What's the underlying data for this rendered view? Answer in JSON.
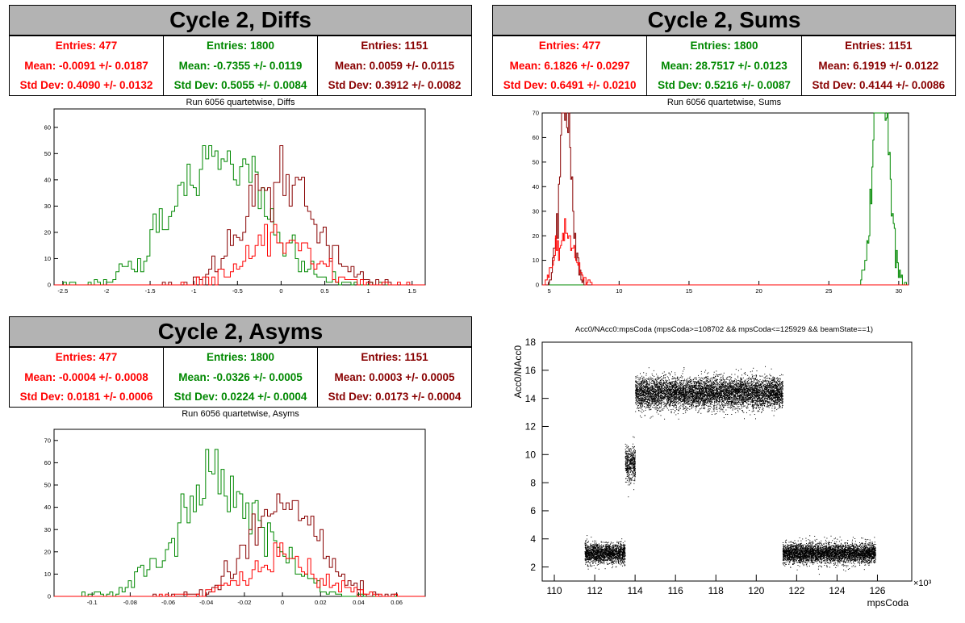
{
  "colors": {
    "s1": "#ff0000",
    "s2": "#008800",
    "s3": "#880000"
  },
  "panels": {
    "diffs": {
      "title": "Cycle 2, Diffs",
      "subtitle": "Run 6056 quartetwise, Diffs",
      "stats": [
        {
          "entries": "Entries: 477",
          "mean": "Mean: -0.0091 +/- 0.0187",
          "std": "Std Dev: 0.4090 +/- 0.0132"
        },
        {
          "entries": "Entries: 1800",
          "mean": "Mean: -0.7355 +/- 0.0119",
          "std": "Std Dev: 0.5055 +/- 0.0084"
        },
        {
          "entries": "Entries: 1151",
          "mean": "Mean: 0.0059 +/- 0.0115",
          "std": "Std Dev: 0.3912 +/- 0.0082"
        }
      ]
    },
    "sums": {
      "title": "Cycle 2, Sums",
      "subtitle": "Run 6056 quartetwise, Sums",
      "stats": [
        {
          "entries": "Entries: 477",
          "mean": "Mean: 6.1826 +/- 0.0297",
          "std": "Std Dev: 0.6491 +/- 0.0210"
        },
        {
          "entries": "Entries: 1800",
          "mean": "Mean: 28.7517 +/- 0.0123",
          "std": "Std Dev: 0.5216 +/- 0.0087"
        },
        {
          "entries": "Entries: 1151",
          "mean": "Mean: 6.1919 +/- 0.0122",
          "std": "Std Dev: 0.4144 +/- 0.0086"
        }
      ]
    },
    "asyms": {
      "title": "Cycle 2, Asyms",
      "subtitle": "Run 6056 quartetwise, Asyms",
      "stats": [
        {
          "entries": "Entries: 477",
          "mean": "Mean: -0.0004 +/- 0.0008",
          "std": "Std Dev: 0.0181 +/- 0.0006"
        },
        {
          "entries": "Entries: 1800",
          "mean": "Mean: -0.0326 +/- 0.0005",
          "std": "Std Dev: 0.0224 +/- 0.0004"
        },
        {
          "entries": "Entries: 1151",
          "mean": "Mean: 0.0003 +/- 0.0005",
          "std": "Std Dev: 0.0173 +/- 0.0004"
        }
      ]
    },
    "scatter": {
      "title": "Acc0/NAcc0:mpsCoda (mpsCoda>=108702 && mpsCoda<=125929 && beamState==1)"
    }
  },
  "chart_data": [
    {
      "type": "histogram",
      "title": "Run 6056 quartetwise, Diffs",
      "xlim": [
        -2.6,
        1.65
      ],
      "ylim": [
        0,
        67
      ],
      "xticks": [
        -2.5,
        -2,
        -1.5,
        -1,
        -0.5,
        0,
        0.5,
        1,
        1.5
      ],
      "yticks": [
        0,
        10,
        20,
        30,
        40,
        50,
        60
      ],
      "series": [
        {
          "color": "s2",
          "entries": 1800,
          "mean": -0.7355,
          "std": 0.5055
        },
        {
          "color": "s3",
          "entries": 1151,
          "mean": 0.0059,
          "std": 0.3912
        },
        {
          "color": "s1",
          "entries": 477,
          "mean": -0.0091,
          "std": 0.409
        }
      ]
    },
    {
      "type": "histogram",
      "title": "Run 6056 quartetwise, Sums",
      "xlim": [
        4.5,
        30.7
      ],
      "ylim": [
        0,
        70
      ],
      "xticks": [
        5,
        10,
        15,
        20,
        25,
        30
      ],
      "yticks": [
        0,
        10,
        20,
        30,
        40,
        50,
        60,
        70
      ],
      "series": [
        {
          "color": "s2",
          "entries": 1800,
          "mean": 28.7517,
          "std": 0.5216
        },
        {
          "color": "s3",
          "entries": 1151,
          "mean": 6.1919,
          "std": 0.4144
        },
        {
          "color": "s1",
          "entries": 477,
          "mean": 6.1826,
          "std": 0.6491
        }
      ]
    },
    {
      "type": "histogram",
      "title": "Run 6056 quartetwise, Asyms",
      "xlim": [
        -0.12,
        0.075
      ],
      "ylim": [
        0,
        75
      ],
      "xticks": [
        -0.1,
        -0.08,
        -0.06,
        -0.04,
        -0.02,
        0,
        0.02,
        0.04,
        0.06
      ],
      "yticks": [
        0,
        10,
        20,
        30,
        40,
        50,
        60,
        70
      ],
      "series": [
        {
          "color": "s2",
          "entries": 1800,
          "mean": -0.0326,
          "std": 0.0224
        },
        {
          "color": "s3",
          "entries": 1151,
          "mean": 0.0003,
          "std": 0.0173
        },
        {
          "color": "s1",
          "entries": 477,
          "mean": -0.0004,
          "std": 0.0181
        }
      ]
    },
    {
      "type": "scatter",
      "title": "Acc0/NAcc0:mpsCoda (mpsCoda>=108702 && mpsCoda<=125929 && beamState==1)",
      "xlabel": "mpsCoda",
      "ylabel": "Acc0/NAcc0",
      "x_multiplier": "×10³",
      "xlim": [
        109.4,
        127.7
      ],
      "ylim": [
        1,
        18
      ],
      "xticks": [
        110,
        112,
        114,
        116,
        118,
        120,
        122,
        124,
        126
      ],
      "yticks": [
        2,
        4,
        6,
        8,
        10,
        12,
        14,
        16,
        18
      ],
      "clusters": [
        {
          "x": [
            111.5,
            113.5
          ],
          "y_center": 3.0,
          "y_spread": 0.35
        },
        {
          "x": [
            113.5,
            114.0
          ],
          "y_center": 9.4,
          "y_spread": 0.6
        },
        {
          "x": [
            114.0,
            121.3
          ],
          "y_center": 14.4,
          "y_spread": 0.55
        },
        {
          "x": [
            121.3,
            125.9
          ],
          "y_center": 3.0,
          "y_spread": 0.35
        }
      ]
    }
  ]
}
